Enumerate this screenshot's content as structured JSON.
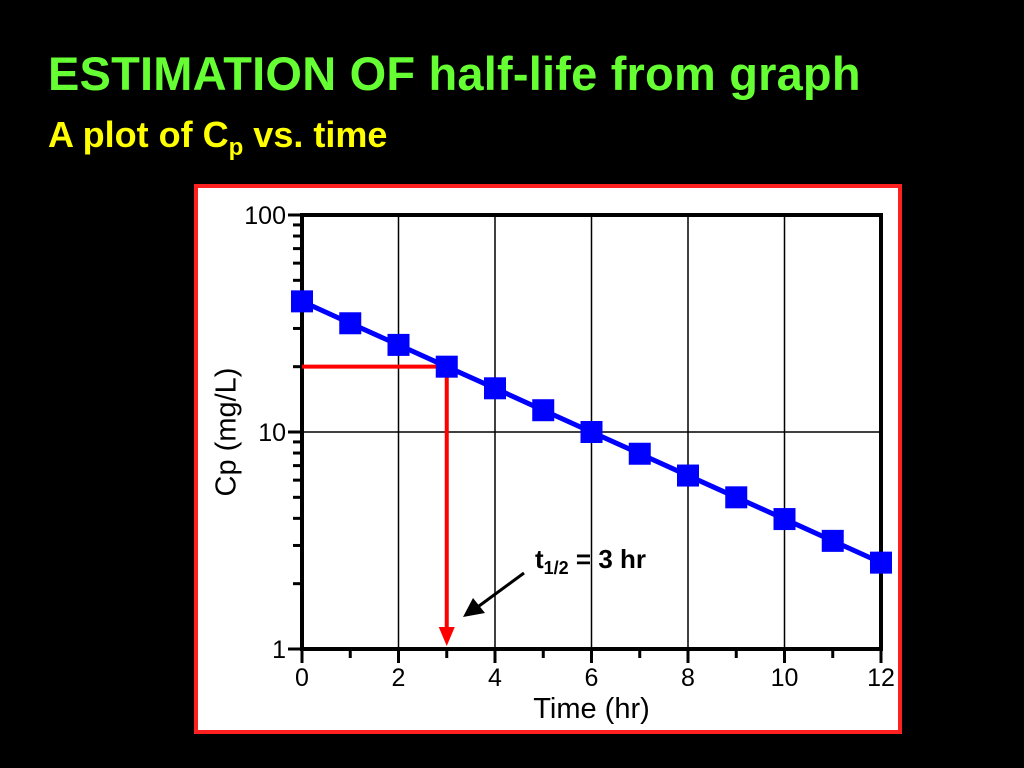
{
  "slide": {
    "title": "ESTIMATION OF half-life from graph",
    "subtitle_main": "A plot of C",
    "subtitle_sub": "p",
    "subtitle_rest": " vs. time"
  },
  "colors": {
    "background": "#000000",
    "title": "#66ff33",
    "subtitle": "#ffff00",
    "frame": "#ff2020",
    "series": "#0000ff",
    "annotation": "#ff0000"
  },
  "chart_data": {
    "type": "line",
    "xlabel": "Time (hr)",
    "ylabel": "Cp (mg/L)",
    "xlim": [
      0,
      12
    ],
    "ylim": [
      1,
      100
    ],
    "y_scale": "log",
    "x_ticks": [
      0,
      2,
      4,
      6,
      8,
      10,
      12
    ],
    "y_ticks": [
      1,
      10,
      100
    ],
    "grid": true,
    "x": [
      0,
      1,
      2,
      3,
      4,
      5,
      6,
      7,
      8,
      9,
      10,
      11,
      12
    ],
    "series": [
      {
        "values": [
          40,
          31.7,
          25.2,
          20,
          15.9,
          12.6,
          10,
          7.94,
          6.3,
          5,
          3.97,
          3.15,
          2.5
        ]
      }
    ],
    "half_life_marker": {
      "x": 3,
      "y": 20
    },
    "annotation": {
      "t_main": "t",
      "t_sub": "1/2",
      "t_rest": " = 3 hr"
    }
  }
}
